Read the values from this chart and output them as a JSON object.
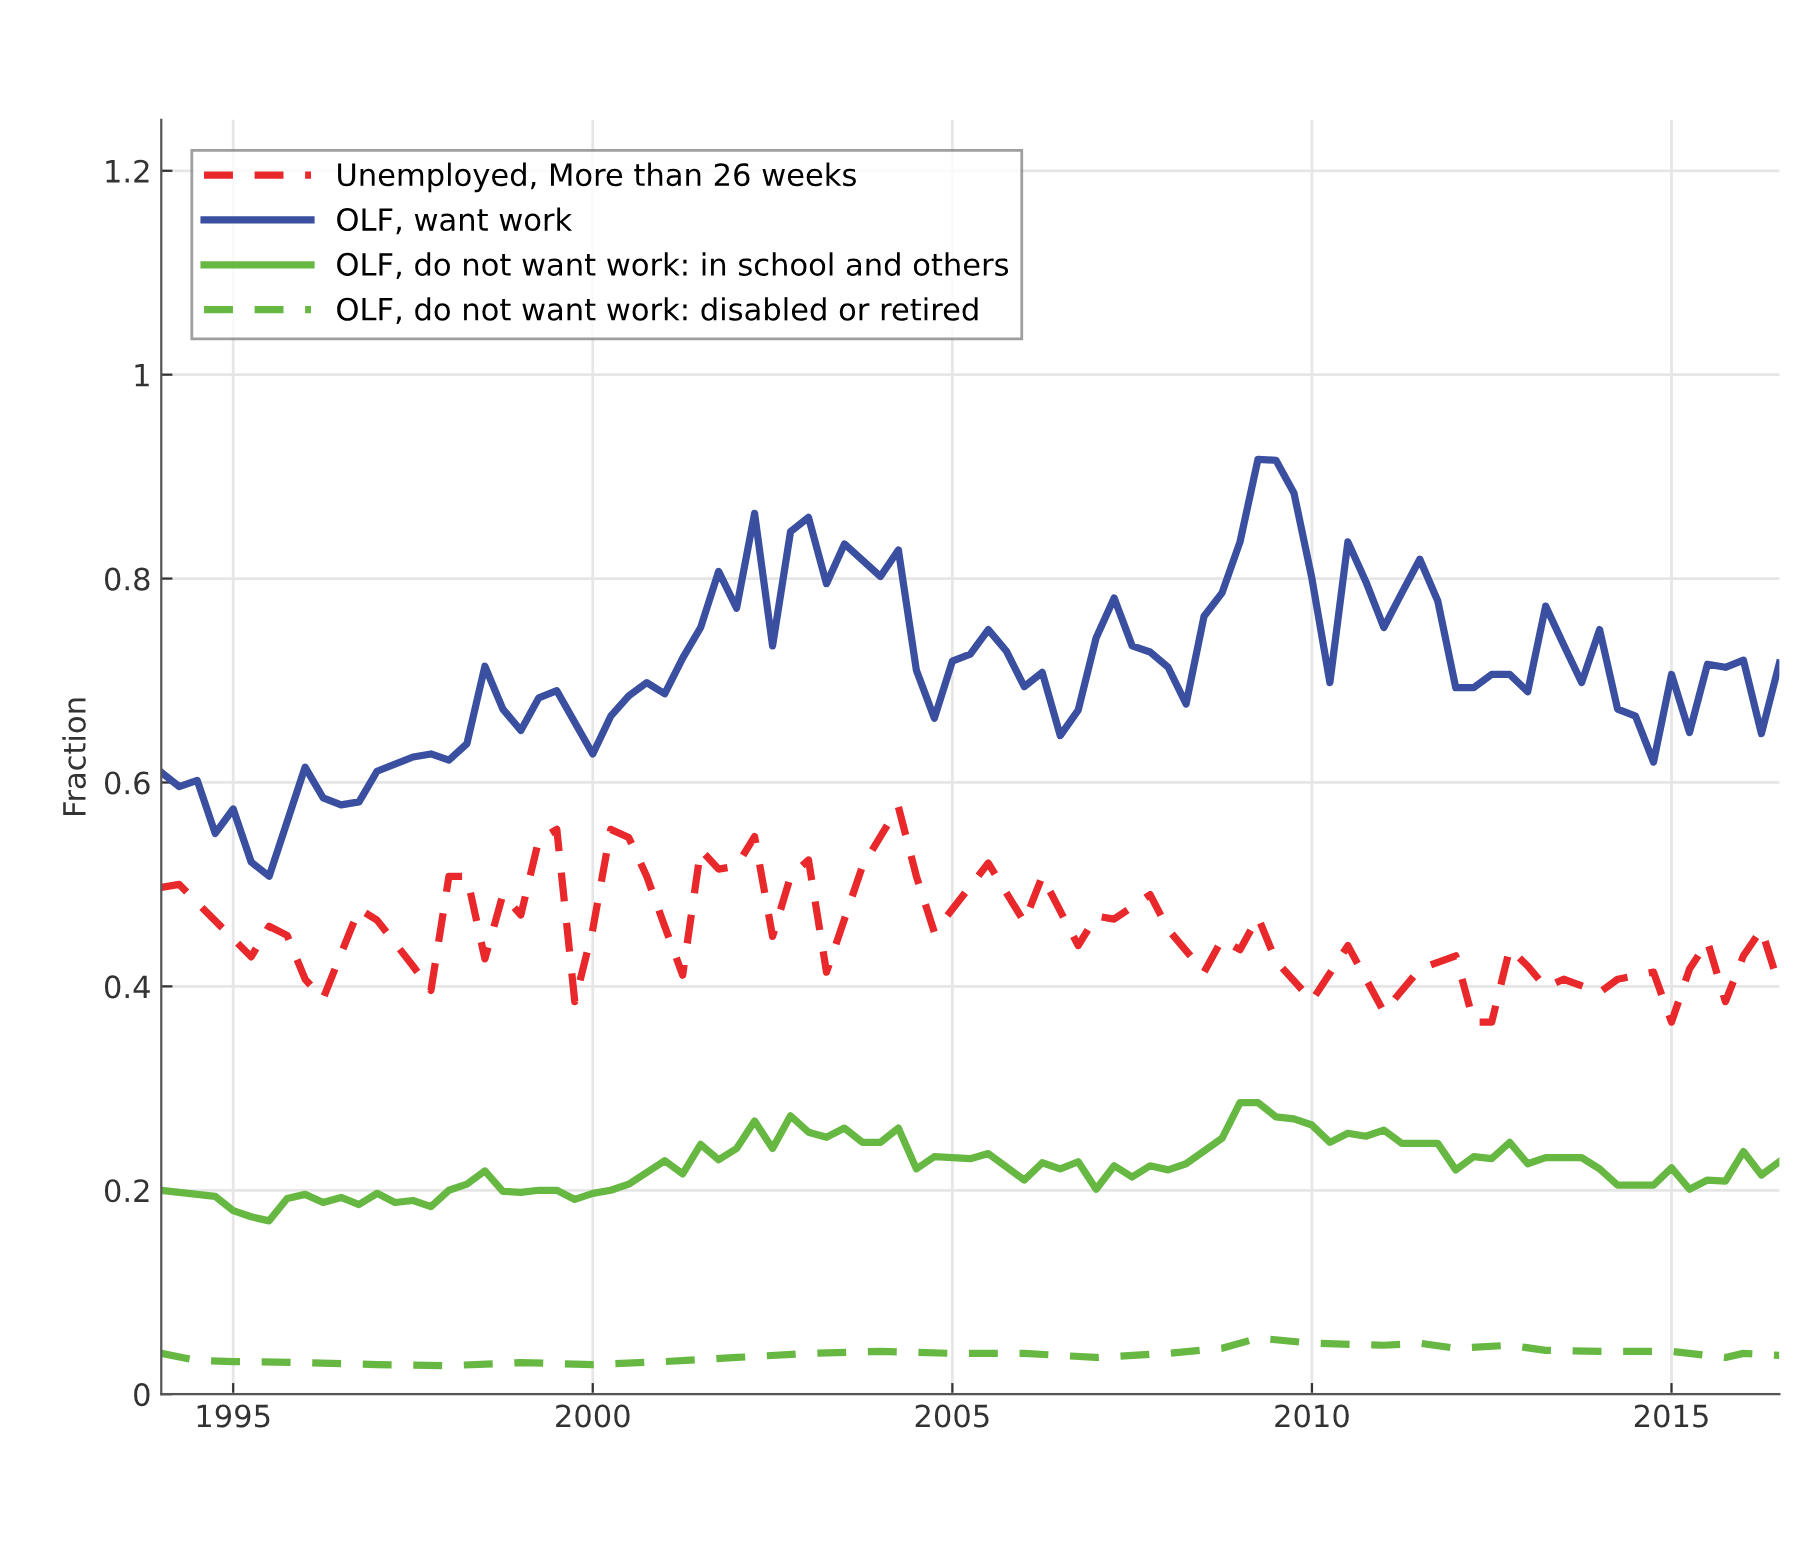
{
  "chart_data": {
    "type": "line",
    "ylabel": "Fraction",
    "xlim": [
      1994,
      2016.5
    ],
    "xticks": [
      1995,
      2000,
      2005,
      2010,
      2015
    ],
    "ylim": [
      0,
      1.25
    ],
    "yticks": [
      0,
      0.2,
      0.4,
      0.6,
      0.8,
      1,
      1.2
    ],
    "grid": true,
    "legend": "top left",
    "series": [
      {
        "name": "Unemployed, More than 26 weeks",
        "color": "#e8282a",
        "line_style": "dashed",
        "x": [
          1994.0,
          1994.25,
          1994.5,
          1995.25,
          1995.5,
          1995.75,
          1996.0,
          1996.25,
          1996.75,
          1997.0,
          1997.5,
          1997.75,
          1998.0,
          1998.25,
          1998.5,
          1998.75,
          1999.0,
          1999.25,
          1999.5,
          1999.75,
          2000.0,
          2000.25,
          2000.5,
          2000.75,
          2001.0,
          2001.25,
          2001.5,
          2001.75,
          2002.0,
          2002.25,
          2002.5,
          2002.75,
          2003.0,
          2003.25,
          2003.5,
          2003.75,
          2004.25,
          2004.5,
          2004.75,
          2005.5,
          2006.0,
          2006.25,
          2006.75,
          2007.0,
          2007.25,
          2007.75,
          2008.0,
          2008.5,
          2008.75,
          2009.0,
          2009.25,
          2009.5,
          2010.0,
          2010.5,
          2011.0,
          2011.5,
          2012.0,
          2012.25,
          2012.5,
          2012.75,
          2013.0,
          2013.25,
          2013.5,
          2014.0,
          2014.25,
          2014.75,
          2015.0,
          2015.25,
          2015.5,
          2015.75,
          2016.0,
          2016.25,
          2016.5
        ],
        "values": [
          0.497,
          0.5,
          0.482,
          0.429,
          0.459,
          0.45,
          0.407,
          0.388,
          0.476,
          0.465,
          0.42,
          0.396,
          0.508,
          0.508,
          0.427,
          0.49,
          0.47,
          0.544,
          0.554,
          0.385,
          0.456,
          0.554,
          0.546,
          0.508,
          0.459,
          0.411,
          0.534,
          0.515,
          0.518,
          0.547,
          0.449,
          0.508,
          0.524,
          0.414,
          0.466,
          0.518,
          0.576,
          0.508,
          0.453,
          0.521,
          0.463,
          0.508,
          0.44,
          0.469,
          0.466,
          0.49,
          0.456,
          0.414,
          0.446,
          0.436,
          0.468,
          0.425,
          0.386,
          0.44,
          0.375,
          0.417,
          0.43,
          0.365,
          0.365,
          0.437,
          0.42,
          0.399,
          0.407,
          0.394,
          0.407,
          0.414,
          0.365,
          0.417,
          0.444,
          0.385,
          0.43,
          0.456,
          0.4
        ]
      },
      {
        "name": "OLF, want work",
        "color": "#3a4fa0",
        "line_style": "solid",
        "x": [
          1994.0,
          1994.25,
          1994.5,
          1994.75,
          1995.0,
          1995.25,
          1995.5,
          1996.0,
          1996.25,
          1996.5,
          1996.75,
          1997.0,
          1997.5,
          1997.75,
          1998.0,
          1998.25,
          1998.5,
          1998.75,
          1999.0,
          1999.25,
          1999.5,
          2000.0,
          2000.25,
          2000.5,
          2000.75,
          2001.0,
          2001.25,
          2001.5,
          2001.75,
          2002.0,
          2002.25,
          2002.5,
          2002.75,
          2003.0,
          2003.25,
          2003.5,
          2004.0,
          2004.25,
          2004.5,
          2004.75,
          2005.0,
          2005.25,
          2005.5,
          2005.75,
          2006.0,
          2006.25,
          2006.5,
          2006.75,
          2007.0,
          2007.25,
          2007.5,
          2007.75,
          2008.0,
          2008.25,
          2008.5,
          2008.75,
          2009.0,
          2009.25,
          2009.5,
          2009.75,
          2010.0,
          2010.25,
          2010.5,
          2010.75,
          2011.0,
          2011.25,
          2011.5,
          2011.75,
          2012.0,
          2012.25,
          2012.5,
          2012.75,
          2013.0,
          2013.25,
          2013.5,
          2013.75,
          2014.0,
          2014.25,
          2014.5,
          2014.75,
          2015.0,
          2015.25,
          2015.5,
          2015.75,
          2016.0,
          2016.25,
          2016.5
        ],
        "values": [
          0.61,
          0.596,
          0.602,
          0.55,
          0.574,
          0.522,
          0.508,
          0.615,
          0.585,
          0.578,
          0.581,
          0.611,
          0.625,
          0.628,
          0.622,
          0.638,
          0.714,
          0.672,
          0.651,
          0.683,
          0.69,
          0.628,
          0.665,
          0.685,
          0.698,
          0.687,
          0.722,
          0.752,
          0.807,
          0.771,
          0.864,
          0.734,
          0.846,
          0.86,
          0.795,
          0.834,
          0.802,
          0.828,
          0.71,
          0.663,
          0.719,
          0.726,
          0.75,
          0.729,
          0.694,
          0.708,
          0.646,
          0.671,
          0.742,
          0.781,
          0.734,
          0.728,
          0.713,
          0.677,
          0.763,
          0.786,
          0.836,
          0.917,
          0.916,
          0.884,
          0.8,
          0.698,
          0.836,
          0.797,
          0.752,
          0.786,
          0.819,
          0.778,
          0.693,
          0.693,
          0.706,
          0.706,
          0.689,
          0.773,
          0.735,
          0.698,
          0.75,
          0.672,
          0.665,
          0.62,
          0.706,
          0.649,
          0.716,
          0.713,
          0.72,
          0.648,
          0.717
        ]
      },
      {
        "name": "OLF, do not want work: in school and others",
        "color": "#67b843",
        "line_style": "solid",
        "x": [
          1994.0,
          1994.5,
          1994.75,
          1995.0,
          1995.25,
          1995.5,
          1995.75,
          1996.0,
          1996.25,
          1996.5,
          1996.75,
          1997.0,
          1997.25,
          1997.5,
          1997.75,
          1998.0,
          1998.25,
          1998.5,
          1998.75,
          1999.0,
          1999.25,
          1999.5,
          1999.75,
          2000.0,
          2000.25,
          2000.5,
          2001.0,
          2001.25,
          2001.5,
          2001.75,
          2002.0,
          2002.25,
          2002.5,
          2002.75,
          2003.0,
          2003.25,
          2003.5,
          2003.75,
          2004.0,
          2004.25,
          2004.5,
          2004.75,
          2005.25,
          2005.5,
          2006.0,
          2006.25,
          2006.5,
          2006.75,
          2007.0,
          2007.25,
          2007.5,
          2007.75,
          2008.0,
          2008.25,
          2008.75,
          2009.0,
          2009.25,
          2009.5,
          2009.75,
          2010.0,
          2010.25,
          2010.5,
          2010.75,
          2011.0,
          2011.25,
          2011.75,
          2012.0,
          2012.25,
          2012.5,
          2012.75,
          2013.0,
          2013.25,
          2013.75,
          2014.0,
          2014.25,
          2014.75,
          2015.0,
          2015.25,
          2015.5,
          2015.75,
          2016.0,
          2016.25,
          2016.5
        ],
        "values": [
          0.2,
          0.196,
          0.194,
          0.18,
          0.174,
          0.17,
          0.192,
          0.196,
          0.188,
          0.193,
          0.186,
          0.197,
          0.188,
          0.19,
          0.184,
          0.2,
          0.206,
          0.219,
          0.199,
          0.198,
          0.2,
          0.2,
          0.191,
          0.197,
          0.2,
          0.206,
          0.229,
          0.216,
          0.245,
          0.23,
          0.241,
          0.268,
          0.241,
          0.273,
          0.257,
          0.252,
          0.261,
          0.247,
          0.247,
          0.261,
          0.221,
          0.233,
          0.231,
          0.236,
          0.21,
          0.227,
          0.221,
          0.228,
          0.201,
          0.224,
          0.213,
          0.224,
          0.22,
          0.226,
          0.251,
          0.286,
          0.286,
          0.272,
          0.27,
          0.264,
          0.247,
          0.256,
          0.253,
          0.259,
          0.246,
          0.246,
          0.22,
          0.233,
          0.231,
          0.247,
          0.226,
          0.232,
          0.232,
          0.221,
          0.205,
          0.205,
          0.222,
          0.201,
          0.21,
          0.209,
          0.238,
          0.215,
          0.228
        ]
      },
      {
        "name": "OLF, do not want work: disabled or retired",
        "color": "#67b843",
        "line_style": "dashed",
        "x": [
          1994.0,
          1994.5,
          1995.0,
          1996.0,
          1997.0,
          1998.0,
          1999.0,
          2000.0,
          2001.0,
          2002.0,
          2003.0,
          2004.0,
          2005.0,
          2006.0,
          2007.0,
          2008.0,
          2008.75,
          2009.25,
          2010.0,
          2011.0,
          2011.5,
          2012.0,
          2012.75,
          2013.25,
          2014.0,
          2015.0,
          2015.75,
          2016.0,
          2016.5
        ],
        "values": [
          0.04,
          0.033,
          0.032,
          0.031,
          0.029,
          0.028,
          0.031,
          0.029,
          0.032,
          0.036,
          0.04,
          0.042,
          0.04,
          0.04,
          0.036,
          0.04,
          0.045,
          0.055,
          0.05,
          0.048,
          0.05,
          0.045,
          0.048,
          0.043,
          0.042,
          0.042,
          0.036,
          0.04,
          0.038
        ]
      }
    ]
  }
}
